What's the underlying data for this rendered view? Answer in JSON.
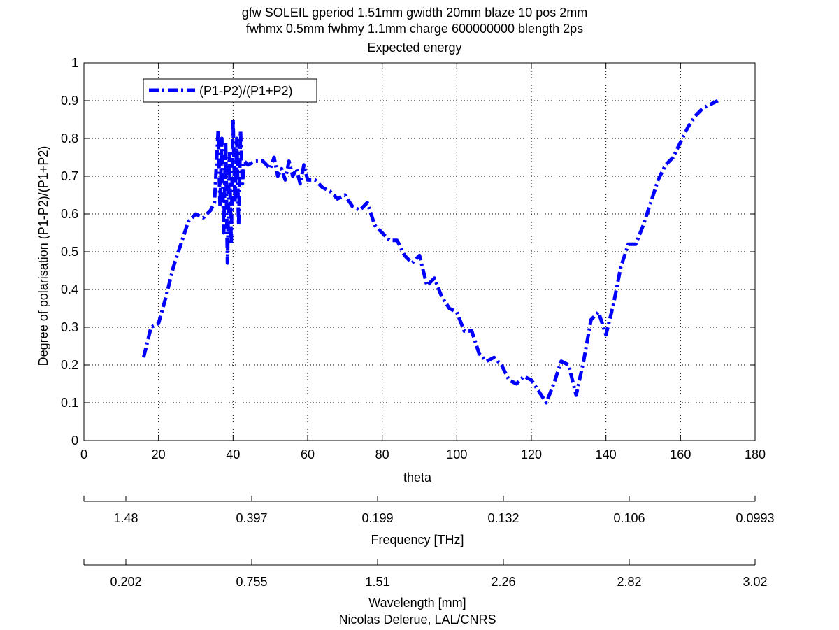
{
  "chart_data": {
    "type": "line",
    "title": [
      "gfw SOLEIL gperiod 1.51mm gwidth 20mm blaze 10 pos 2mm",
      "fwhmx 0.5mm fwhmy 1.1mm charge 600000000 blength 2ps",
      "Expected energy"
    ],
    "xlabel": "theta",
    "ylabel": "Degree of polarisation (P1-P2)/(P1+P2)",
    "xlim": [
      0,
      180
    ],
    "ylim": [
      0,
      1
    ],
    "xticks": [
      "0",
      "20",
      "40",
      "60",
      "80",
      "100",
      "120",
      "140",
      "160",
      "180"
    ],
    "yticks": [
      "0",
      "0.1",
      "0.2",
      "0.3",
      "0.4",
      "0.5",
      "0.6",
      "0.7",
      "0.8",
      "0.9",
      "1"
    ],
    "grid": true,
    "legend_position": "top-left",
    "line_color": "#0000ff",
    "line_style": "dash-dot",
    "series": [
      {
        "name": "(P1-P2)/(P1+P2)",
        "x": [
          16,
          18,
          20,
          22,
          24,
          26,
          28,
          30,
          32,
          34,
          35,
          36,
          36.5,
          37,
          37.5,
          38,
          38.5,
          39,
          39.5,
          40,
          40.5,
          41,
          41.5,
          42,
          42.5,
          43,
          44,
          46,
          48,
          50,
          51,
          52,
          53,
          54,
          55,
          56,
          57,
          58,
          59,
          60,
          62,
          64,
          66,
          68,
          70,
          72,
          74,
          76,
          78,
          80,
          82,
          84,
          86,
          88,
          90,
          92,
          94,
          96,
          98,
          100,
          102,
          104,
          106,
          108,
          110,
          112,
          114,
          116,
          118,
          120,
          122,
          124,
          126,
          128,
          130,
          132,
          134,
          136,
          138,
          140,
          142,
          144,
          146,
          148,
          150,
          152,
          154,
          156,
          158,
          160,
          162,
          164,
          166,
          168,
          170
        ],
        "y": [
          0.22,
          0.3,
          0.31,
          0.38,
          0.46,
          0.52,
          0.58,
          0.6,
          0.59,
          0.61,
          0.63,
          0.82,
          0.62,
          0.8,
          0.55,
          0.79,
          0.47,
          0.76,
          0.52,
          0.85,
          0.63,
          0.8,
          0.57,
          0.82,
          0.68,
          0.74,
          0.73,
          0.74,
          0.74,
          0.72,
          0.75,
          0.7,
          0.72,
          0.69,
          0.74,
          0.7,
          0.72,
          0.68,
          0.73,
          0.69,
          0.69,
          0.67,
          0.66,
          0.64,
          0.65,
          0.62,
          0.61,
          0.63,
          0.57,
          0.55,
          0.53,
          0.53,
          0.49,
          0.47,
          0.49,
          0.41,
          0.43,
          0.38,
          0.35,
          0.34,
          0.29,
          0.29,
          0.23,
          0.21,
          0.22,
          0.2,
          0.16,
          0.15,
          0.17,
          0.16,
          0.13,
          0.1,
          0.15,
          0.21,
          0.2,
          0.12,
          0.21,
          0.32,
          0.34,
          0.28,
          0.36,
          0.46,
          0.52,
          0.52,
          0.57,
          0.63,
          0.69,
          0.73,
          0.75,
          0.79,
          0.83,
          0.86,
          0.88,
          0.89,
          0.9
        ]
      }
    ],
    "secondary_axes": [
      {
        "label": "Frequency [THz]",
        "ticks": [
          "1.48",
          "0.397",
          "0.199",
          "0.132",
          "0.106",
          "0.0993"
        ]
      },
      {
        "label": "Wavelength [mm]",
        "ticks": [
          "0.202",
          "0.755",
          "1.51",
          "2.26",
          "2.82",
          "3.02"
        ]
      }
    ]
  },
  "credit": "Nicolas Delerue, LAL/CNRS"
}
